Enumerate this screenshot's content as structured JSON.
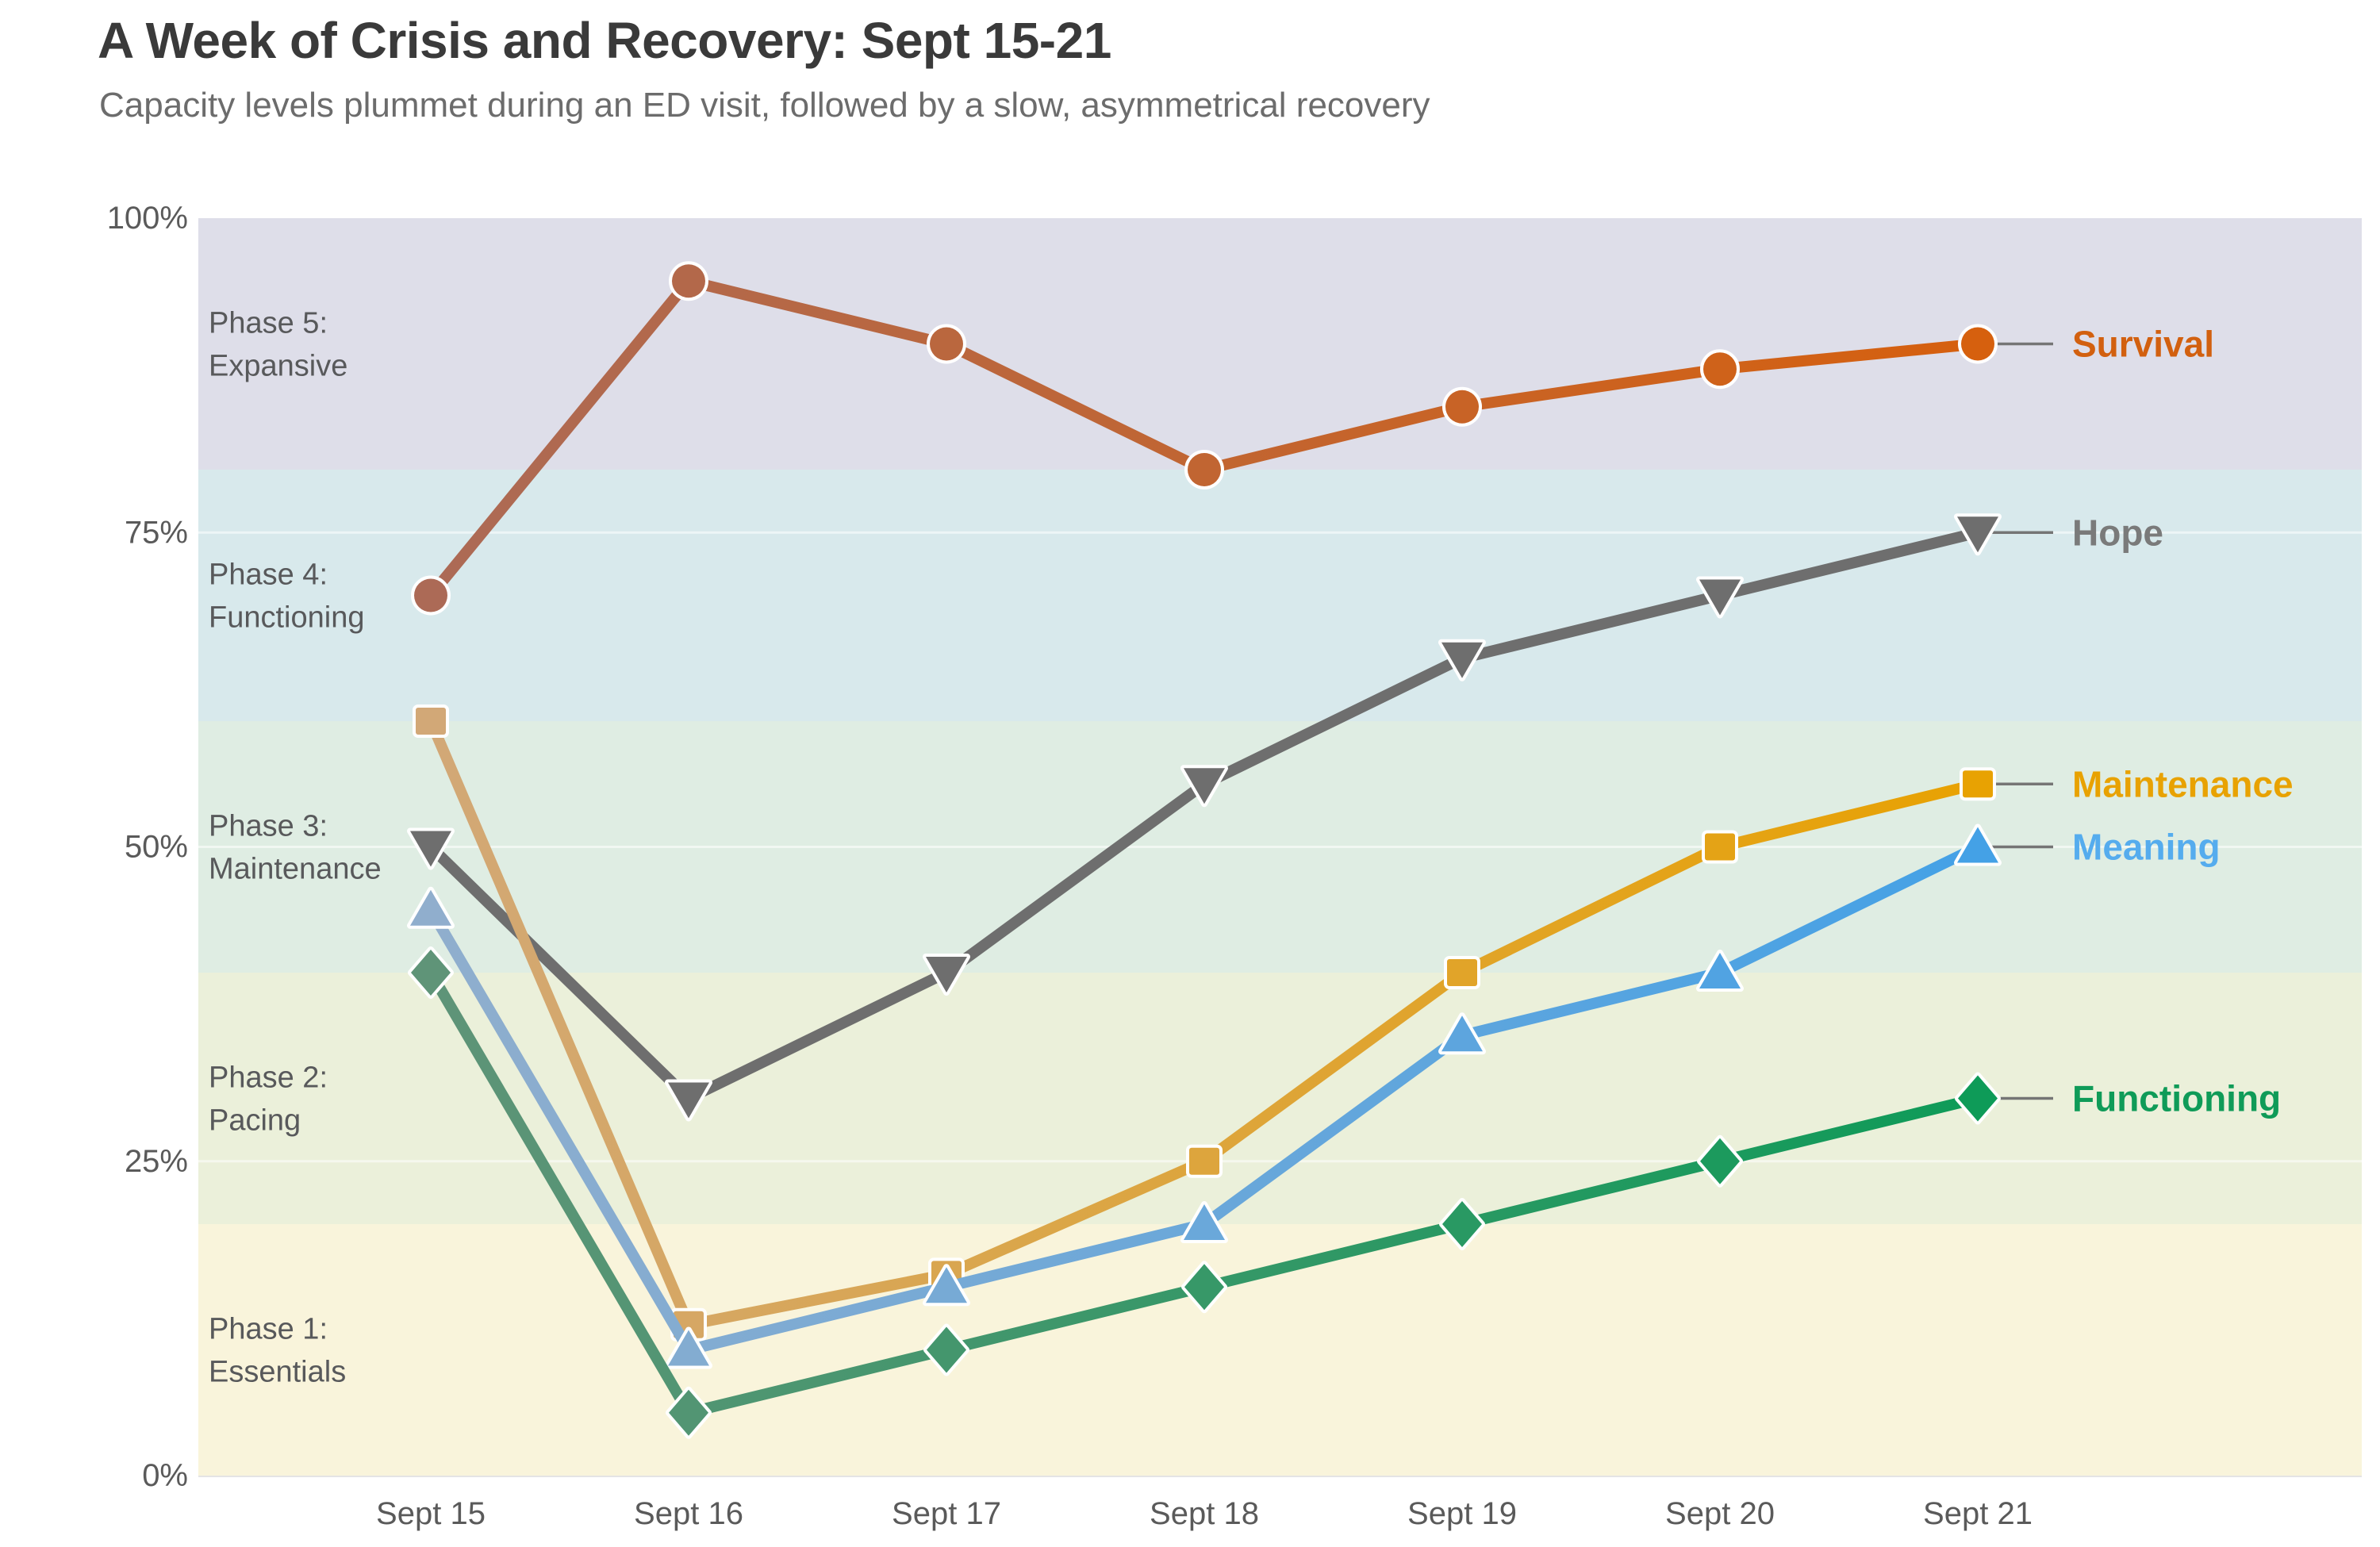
{
  "header": {
    "title": "A Week of Crisis and Recovery: Sept 15-21",
    "subtitle": "Capacity levels plummet during an ED visit, followed by a slow, asymmetrical recovery"
  },
  "chart_data": {
    "type": "line",
    "title": "A Week of Crisis and Recovery: Sept 15-21",
    "subtitle": "Capacity levels plummet during an ED visit, followed by a slow, asymmetrical recovery",
    "x_labels": [
      "Sept 15",
      "Sept 16",
      "Sept 17",
      "Sept 18",
      "Sept 19",
      "Sept 20",
      "Sept 21"
    ],
    "ylim": [
      0,
      100
    ],
    "y_ticks": [
      {
        "value": 0,
        "label": "0%"
      },
      {
        "value": 25,
        "label": "25%"
      },
      {
        "value": 50,
        "label": "50%"
      },
      {
        "value": 75,
        "label": "75%"
      },
      {
        "value": 100,
        "label": "100%"
      }
    ],
    "grid": "faint light horizontal lines at 25%, 50%, 75% over the bands",
    "legend_position": "right edge, inline series labels with gray leader lines",
    "phase_bands": [
      {
        "name": "Phase 5: Expansive",
        "label_lines": [
          "Phase 5:",
          "Expansive"
        ],
        "from": 80,
        "to": 100,
        "color": "#DEDEE9"
      },
      {
        "name": "Phase 4: Functioning",
        "label_lines": [
          "Phase 4:",
          "Functioning"
        ],
        "from": 60,
        "to": 80,
        "color": "#D8E9EC"
      },
      {
        "name": "Phase 3: Maintenance",
        "label_lines": [
          "Phase 3:",
          "Maintenance"
        ],
        "from": 40,
        "to": 60,
        "color": "#DFEDE3"
      },
      {
        "name": "Phase 2: Pacing",
        "label_lines": [
          "Phase 2:",
          "Pacing"
        ],
        "from": 20,
        "to": 40,
        "color": "#EBF0DA"
      },
      {
        "name": "Phase 1: Essentials",
        "label_lines": [
          "Phase 1:",
          "Essentials"
        ],
        "from": 0,
        "to": 20,
        "color": "#F9F4DB"
      }
    ],
    "band_label_color": "#58595B",
    "axis_tick_color": "#5A5A5A",
    "leader_line_color": "#757575",
    "series": [
      {
        "name": "Survival",
        "marker": "circle",
        "values": [
          70,
          95,
          90,
          80,
          85,
          88,
          90
        ],
        "color_start": "#AC6A56",
        "color_end": "#D6600E",
        "label_color": "#D2600F"
      },
      {
        "name": "Hope",
        "marker": "triangle-down",
        "values": [
          50,
          30,
          40,
          55,
          65,
          70,
          75
        ],
        "color_start": "#6E6E6E",
        "color_end": "#6E6E6E",
        "label_color": "#7A7A7A"
      },
      {
        "name": "Maintenance",
        "marker": "square",
        "values": [
          60,
          12,
          16,
          25,
          40,
          50,
          55
        ],
        "color_start": "#D2A877",
        "color_end": "#E8A202",
        "label_color": "#E8A202"
      },
      {
        "name": "Meaning",
        "marker": "triangle-up",
        "values": [
          45,
          10,
          15,
          20,
          35,
          40,
          50
        ],
        "color_start": "#90AECD",
        "color_end": "#44A1E6",
        "label_color": "#55ACEE"
      },
      {
        "name": "Functioning",
        "marker": "diamond",
        "values": [
          40,
          5,
          10,
          15,
          20,
          25,
          30
        ],
        "color_start": "#5F9478",
        "color_end": "#0E9B58",
        "label_color": "#0F9B58"
      }
    ]
  }
}
